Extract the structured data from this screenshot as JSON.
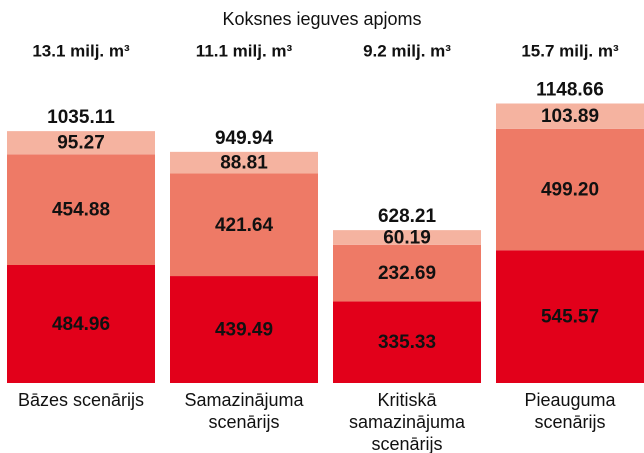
{
  "chart_data": {
    "type": "stacked_bar",
    "title": "Koksnes ieguves apjoms",
    "categories": [
      "Bāzes scenārijs",
      "Samazinājuma\nscenārijs",
      "Kritiskā\nsamazinājuma\nscenārijs",
      "Pieauguma\nscenārijs"
    ],
    "header_labels": [
      "13.1 milj. m³",
      "11.1 milj. m³",
      "9.2 milj. m³",
      "15.7 milj. m³"
    ],
    "totals": [
      1035.11,
      949.94,
      628.21,
      1148.66
    ],
    "series": [
      {
        "color": "#e2001a",
        "values": [
          484.96,
          439.49,
          335.33,
          545.57
        ]
      },
      {
        "color": "#ee7a66",
        "values": [
          454.88,
          421.64,
          232.69,
          499.2
        ],
        "value_labels": [
          "454.88",
          "421.64",
          "232.69",
          "499.20"
        ]
      },
      {
        "color": "#f5b3a0",
        "values": [
          95.27,
          88.81,
          60.19,
          103.89
        ]
      }
    ],
    "ylim": [
      0,
      1200
    ]
  }
}
